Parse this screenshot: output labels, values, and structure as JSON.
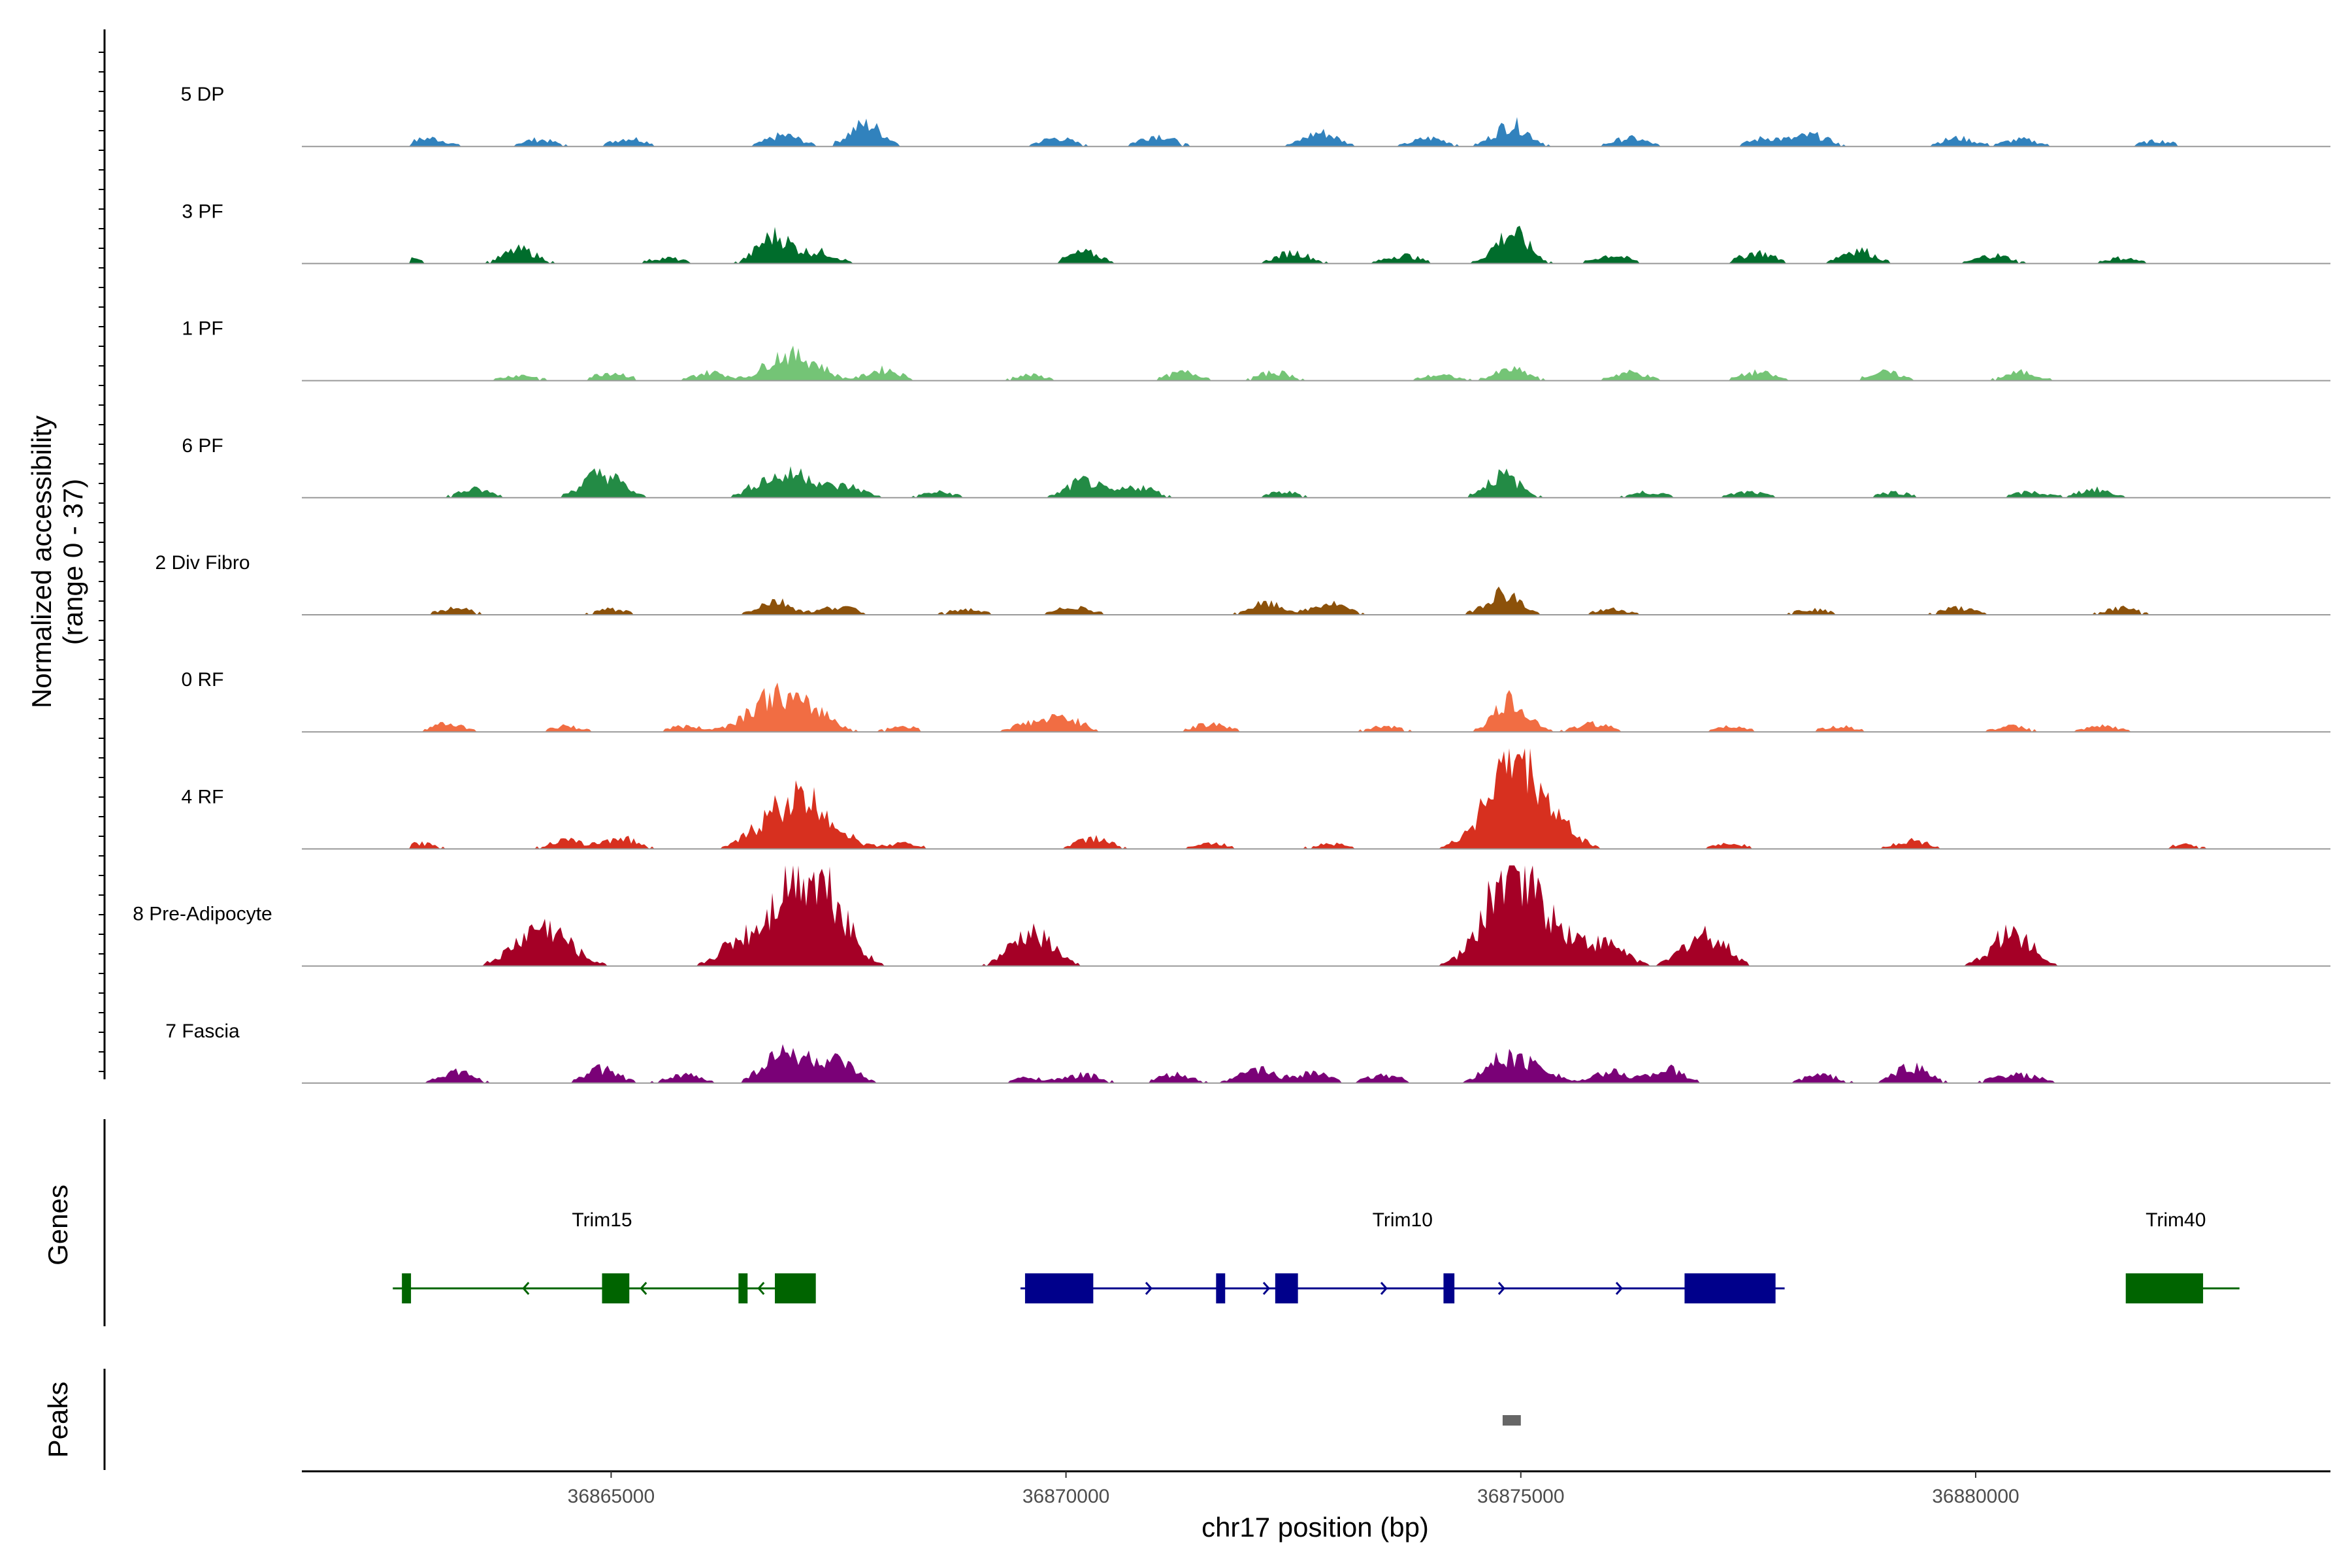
{
  "chart_data": {
    "type": "area",
    "title": "",
    "ylabel": "Normalized accessibility\n(range 0 - 37)",
    "xlabel": "chr17 position (bp)",
    "chromosome": "chr17",
    "x_range": [
      36861600,
      36883900
    ],
    "y_range": [
      0,
      37
    ],
    "x_ticks": [
      36865000,
      36870000,
      36875000,
      36880000
    ],
    "x_tick_labels": [
      "36865000",
      "36870000",
      "36875000",
      "36880000"
    ],
    "tracks": [
      {
        "name": "5 DP",
        "color": "#3182BD",
        "peaks": [
          [
            36863000,
            3
          ],
          [
            36864200,
            2.5
          ],
          [
            36865200,
            3
          ],
          [
            36866900,
            4
          ],
          [
            36867800,
            8
          ],
          [
            36869900,
            3
          ],
          [
            36871000,
            4
          ],
          [
            36872800,
            5
          ],
          [
            36874000,
            3
          ],
          [
            36874900,
            8
          ],
          [
            36876200,
            3
          ],
          [
            36877700,
            3
          ],
          [
            36878200,
            4
          ],
          [
            36879800,
            3
          ],
          [
            36880500,
            2.5
          ],
          [
            36882000,
            2
          ]
        ]
      },
      {
        "name": "3 PF",
        "color": "#006D2C",
        "peaks": [
          [
            36862700,
            2
          ],
          [
            36864000,
            5
          ],
          [
            36865600,
            2
          ],
          [
            36866800,
            10
          ],
          [
            36867300,
            4
          ],
          [
            36870200,
            4
          ],
          [
            36872500,
            4
          ],
          [
            36873700,
            3
          ],
          [
            36874900,
            11
          ],
          [
            36876000,
            3
          ],
          [
            36877600,
            4
          ],
          [
            36878700,
            5
          ],
          [
            36880200,
            3
          ],
          [
            36881600,
            2
          ]
        ]
      },
      {
        "name": "1 PF",
        "color": "#74C476",
        "peaks": [
          [
            36864000,
            2
          ],
          [
            36865000,
            3
          ],
          [
            36866100,
            3
          ],
          [
            36866850,
            8
          ],
          [
            36867200,
            6
          ],
          [
            36868000,
            4
          ],
          [
            36869600,
            2
          ],
          [
            36871300,
            3
          ],
          [
            36872300,
            3
          ],
          [
            36874100,
            2
          ],
          [
            36874900,
            4
          ],
          [
            36876200,
            3
          ],
          [
            36877600,
            3
          ],
          [
            36879000,
            3
          ],
          [
            36880500,
            3
          ]
        ]
      },
      {
        "name": "6 PF",
        "color": "#238B45",
        "peaks": [
          [
            36863500,
            3
          ],
          [
            36864800,
            5
          ],
          [
            36865000,
            5
          ],
          [
            36866700,
            6
          ],
          [
            36867100,
            8
          ],
          [
            36867600,
            4
          ],
          [
            36868600,
            2
          ],
          [
            36870200,
            6
          ],
          [
            36870800,
            4
          ],
          [
            36872400,
            2
          ],
          [
            36874800,
            8
          ],
          [
            36876400,
            2
          ],
          [
            36877500,
            2
          ],
          [
            36879100,
            2
          ],
          [
            36880600,
            2
          ],
          [
            36881300,
            3
          ]
        ]
      },
      {
        "name": "2 Div Fibro",
        "color": "#8C510A",
        "peaks": [
          [
            36863300,
            2.5
          ],
          [
            36865000,
            2
          ],
          [
            36866800,
            5
          ],
          [
            36867500,
            3
          ],
          [
            36868900,
            2
          ],
          [
            36870100,
            3
          ],
          [
            36872200,
            4
          ],
          [
            36872900,
            4
          ],
          [
            36874800,
            8
          ],
          [
            36876000,
            2
          ],
          [
            36878200,
            2
          ],
          [
            36879800,
            2.5
          ],
          [
            36881600,
            2.5
          ]
        ]
      },
      {
        "name": "0 RF",
        "color": "#F16D43",
        "peaks": [
          [
            36863200,
            3
          ],
          [
            36864500,
            2
          ],
          [
            36865800,
            2
          ],
          [
            36866800,
            13
          ],
          [
            36867300,
            5
          ],
          [
            36868200,
            2
          ],
          [
            36869600,
            3
          ],
          [
            36870000,
            5
          ],
          [
            36871600,
            3
          ],
          [
            36873500,
            2
          ],
          [
            36874900,
            11
          ],
          [
            36875800,
            3
          ],
          [
            36877300,
            2
          ],
          [
            36878500,
            2
          ],
          [
            36880400,
            2
          ],
          [
            36881400,
            2
          ]
        ]
      },
      {
        "name": "4 RF",
        "color": "#D7301F",
        "peaks": [
          [
            36862900,
            2
          ],
          [
            36864500,
            3
          ],
          [
            36865100,
            4
          ],
          [
            36866600,
            5
          ],
          [
            36866900,
            7
          ],
          [
            36867200,
            15
          ],
          [
            36868200,
            2
          ],
          [
            36870300,
            4
          ],
          [
            36871600,
            2
          ],
          [
            36872900,
            2
          ],
          [
            36874500,
            2
          ],
          [
            36874950,
            33
          ],
          [
            36875500,
            4
          ],
          [
            36877300,
            2
          ],
          [
            36879300,
            3
          ],
          [
            36882300,
            1.5
          ]
        ]
      },
      {
        "name": "8 Pre-Adipocyte",
        "color": "#A50026",
        "peaks": [
          [
            36864250,
            14
          ],
          [
            36866350,
            7
          ],
          [
            36866650,
            7
          ],
          [
            36866950,
            12
          ],
          [
            36867200,
            27
          ],
          [
            36867500,
            8
          ],
          [
            36869500,
            7
          ],
          [
            36869750,
            7
          ],
          [
            36874850,
            20
          ],
          [
            36875050,
            19
          ],
          [
            36875600,
            7
          ],
          [
            36876000,
            7
          ],
          [
            36876900,
            7
          ],
          [
            36877150,
            7
          ],
          [
            36880300,
            7
          ],
          [
            36880500,
            7
          ]
        ]
      },
      {
        "name": "7 Fascia",
        "color": "#7A0177",
        "peaks": [
          [
            36863300,
            4
          ],
          [
            36864900,
            5
          ],
          [
            36865800,
            3
          ],
          [
            36866800,
            8
          ],
          [
            36867100,
            7
          ],
          [
            36867500,
            7
          ],
          [
            36869600,
            2
          ],
          [
            36870200,
            3
          ],
          [
            36871200,
            3
          ],
          [
            36872100,
            5
          ],
          [
            36872700,
            4
          ],
          [
            36873500,
            3
          ],
          [
            36874800,
            9
          ],
          [
            36875200,
            6
          ],
          [
            36876000,
            4
          ],
          [
            36876600,
            5
          ],
          [
            36878300,
            3
          ],
          [
            36879300,
            6
          ],
          [
            36880300,
            2
          ],
          [
            36880600,
            2
          ]
        ]
      }
    ],
    "genes": [
      {
        "name": "Trim15",
        "strand": "-",
        "start": 36862600,
        "end": 36867200,
        "color": "#006400",
        "exons": [
          [
            36862700,
            36862800
          ],
          [
            36864900,
            36865200
          ],
          [
            36866400,
            36866500
          ],
          [
            36866800,
            36867250
          ]
        ],
        "label_pos": 36864900
      },
      {
        "name": "Trim10",
        "strand": "+",
        "start": 36869500,
        "end": 36877900,
        "color": "#00008B",
        "exons": [
          [
            36869550,
            36870300
          ],
          [
            36871650,
            36871750
          ],
          [
            36872300,
            36872550
          ],
          [
            36874150,
            36874270
          ],
          [
            36876800,
            36877800
          ]
        ],
        "label_pos": 36873700
      },
      {
        "name": "Trim40",
        "strand": "-",
        "start": 36881700,
        "end": 36882900,
        "color": "#006400",
        "exons": [
          [
            36881650,
            36882500
          ]
        ],
        "label_pos": 36882200
      }
    ],
    "peaks_track": [
      [
        36874800,
        36875000
      ]
    ],
    "panel_titles": {
      "genes": "Genes",
      "peaks": "Peaks"
    }
  }
}
